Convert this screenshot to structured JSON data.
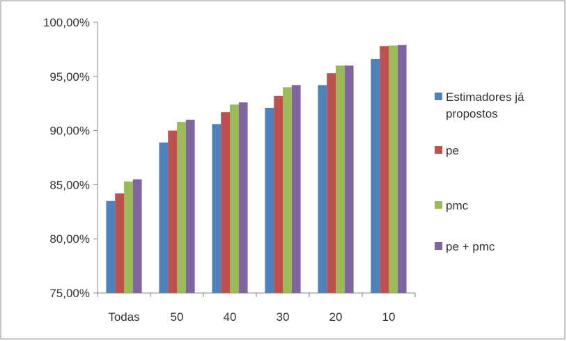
{
  "chart_data": {
    "type": "bar",
    "title": "",
    "xlabel": "",
    "ylabel": "",
    "categories": [
      "Todas",
      "50",
      "40",
      "30",
      "20",
      "10"
    ],
    "series": [
      {
        "name": "Estimadores já propostos",
        "name_lines": [
          "Estimadores já",
          "propostos"
        ],
        "color": "#4f81bd",
        "values": [
          83.5,
          88.9,
          90.6,
          92.1,
          94.2,
          96.6
        ]
      },
      {
        "name": "pe",
        "name_lines": [
          "pe"
        ],
        "color": "#c0504d",
        "values": [
          84.2,
          90.0,
          91.7,
          93.2,
          95.3,
          97.8
        ]
      },
      {
        "name": "pmc",
        "name_lines": [
          "pmc"
        ],
        "color": "#9bbb59",
        "values": [
          85.3,
          90.8,
          92.4,
          94.0,
          96.0,
          97.85
        ]
      },
      {
        "name": "pe + pmc",
        "name_lines": [
          "pe + pmc"
        ],
        "color": "#8064a2",
        "values": [
          85.5,
          91.0,
          92.6,
          94.2,
          96.0,
          97.9
        ]
      }
    ],
    "ylim": [
      75,
      100
    ],
    "yticks": [
      75,
      80,
      85,
      90,
      95,
      100
    ],
    "ytick_labels": [
      "75,00%",
      "80,00%",
      "85,00%",
      "90,00%",
      "95,00%",
      "100,00%"
    ],
    "grid": false,
    "legend_position": "right"
  }
}
